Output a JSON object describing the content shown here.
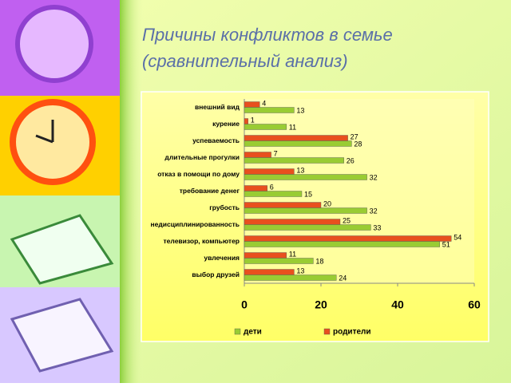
{
  "chart_data": {
    "type": "bar",
    "orientation": "horizontal",
    "title": "Причины конфликтов в семье",
    "subtitle": "(сравнительный анализ)",
    "categories": [
      "внешний вид",
      "курение",
      "успеваемость",
      "длительные прогулки",
      "отказ в помощи по дому",
      "требование денег",
      "грубость",
      "недисциплинированность",
      "телевизор, компьютер",
      "увлечения",
      "выбор друзей"
    ],
    "series": [
      {
        "name": "родители",
        "color": "#e8501e",
        "values": [
          4,
          1,
          27,
          7,
          13,
          6,
          20,
          25,
          54,
          11,
          13
        ]
      },
      {
        "name": "дети",
        "color": "#99cc33",
        "values": [
          13,
          11,
          28,
          26,
          32,
          15,
          32,
          33,
          51,
          18,
          24
        ]
      }
    ],
    "xlim": [
      0,
      60
    ],
    "xticks": [
      0,
      20,
      40,
      60
    ],
    "legend": "bottom",
    "grid": false
  }
}
